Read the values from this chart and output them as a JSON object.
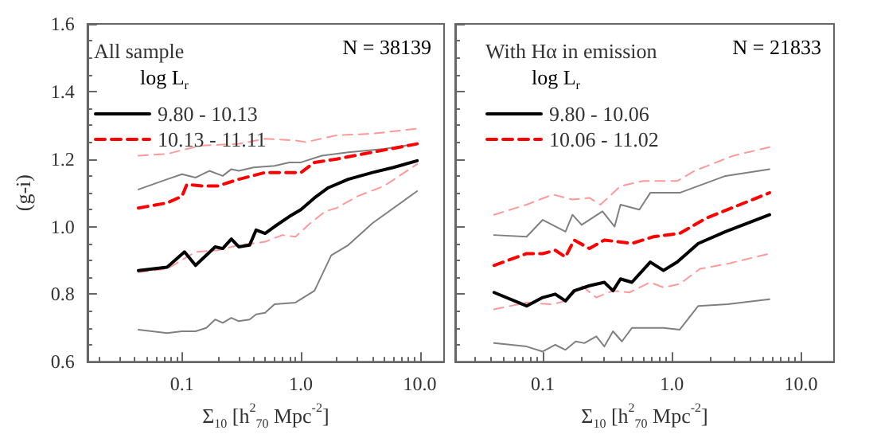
{
  "chart_data": [
    {
      "type": "line",
      "title": "All sample",
      "annotations": [
        "N = 38139"
      ],
      "xlabel": "Σ$_{10}$ [h$^{2}$$_{70}$ Mpc$^{-2}$]",
      "ylabel": "(g-i)",
      "legend_title": "log L$_{r}$",
      "legend": "top left",
      "log": "x",
      "marker": "none",
      "xlim": [
        0.016,
        16
      ],
      "xticks": [
        {
          "value": 0.1,
          "label": "0.1"
        },
        {
          "value": 1,
          "label": "1.0"
        },
        {
          "value": 10,
          "label": "10.0"
        }
      ],
      "ylim": [
        0.6,
        1.6
      ],
      "yticks": [
        {
          "value": 0.6,
          "label": "0.6"
        },
        {
          "value": 0.8,
          "label": "0.8"
        },
        {
          "value": 1.0,
          "label": "1.0"
        },
        {
          "value": 1.2,
          "label": "1.2"
        },
        {
          "value": 1.4,
          "label": "1.4"
        },
        {
          "value": 1.6,
          "label": "1.6"
        }
      ],
      "series": [
        {
          "color": "#808080",
          "line_style": "solid",
          "x": [
            0.043,
            0.075,
            0.1,
            0.13,
            0.17,
            0.22,
            0.26,
            0.3,
            0.4,
            0.6,
            0.8,
            1.0,
            1.5,
            2.5,
            5,
            9.5
          ],
          "values": [
            1.11,
            1.14,
            1.155,
            1.145,
            1.165,
            1.15,
            1.17,
            1.165,
            1.175,
            1.18,
            1.19,
            1.19,
            1.21,
            1.22,
            1.23,
            1.245
          ]
        },
        {
          "color": "#808080",
          "line_style": "solid",
          "x": [
            0.043,
            0.075,
            0.1,
            0.13,
            0.16,
            0.19,
            0.22,
            0.26,
            0.3,
            0.37,
            0.42,
            0.5,
            0.6,
            0.9,
            1.3,
            1.8,
            2.5,
            4,
            9.5
          ],
          "values": [
            0.695,
            0.685,
            0.69,
            0.69,
            0.7,
            0.725,
            0.715,
            0.73,
            0.72,
            0.725,
            0.74,
            0.745,
            0.77,
            0.775,
            0.81,
            0.915,
            0.945,
            1.01,
            1.105
          ]
        },
        {
          "color": "#ff9999",
          "line_style": "dashed",
          "x": [
            0.043,
            0.075,
            0.11,
            0.15,
            0.3,
            0.5,
            0.9,
            1.1,
            2,
            4,
            9.5
          ],
          "values": [
            1.21,
            1.215,
            1.23,
            1.24,
            1.245,
            1.26,
            1.255,
            1.25,
            1.27,
            1.275,
            1.29
          ]
        },
        {
          "color": "#ff9999",
          "line_style": "dashed",
          "x": [
            0.043,
            0.075,
            0.13,
            0.2,
            0.3,
            0.5,
            0.7,
            0.9,
            1.2,
            1.6,
            2,
            3,
            5,
            9.5
          ],
          "values": [
            0.865,
            0.875,
            0.925,
            0.93,
            0.945,
            0.955,
            0.975,
            0.97,
            1.01,
            1.045,
            1.055,
            1.09,
            1.12,
            1.185
          ]
        },
        {
          "name": "9.80 - 10.13",
          "color": "#000000",
          "line_style": "solid",
          "x": [
            0.043,
            0.075,
            0.105,
            0.13,
            0.19,
            0.22,
            0.26,
            0.3,
            0.37,
            0.42,
            0.5,
            0.6,
            0.8,
            1.0,
            1.3,
            1.7,
            2.5,
            4,
            6,
            9.5
          ],
          "values": [
            0.87,
            0.88,
            0.925,
            0.885,
            0.94,
            0.935,
            0.963,
            0.94,
            0.945,
            0.99,
            0.98,
            1.0,
            1.03,
            1.05,
            1.085,
            1.115,
            1.14,
            1.16,
            1.175,
            1.195
          ]
        },
        {
          "name": "10.13 - 11.11",
          "color": "#ff0000",
          "line_style": "dashed",
          "x": [
            0.043,
            0.075,
            0.1,
            0.11,
            0.15,
            0.2,
            0.3,
            0.5,
            0.7,
            1.0,
            1.3,
            2,
            4,
            9.5
          ],
          "values": [
            1.055,
            1.07,
            1.09,
            1.125,
            1.12,
            1.12,
            1.14,
            1.16,
            1.16,
            1.16,
            1.19,
            1.2,
            1.22,
            1.245
          ]
        }
      ]
    },
    {
      "type": "line",
      "title": "With Hα in emission",
      "annotations": [
        "N = 21833"
      ],
      "xlabel": "Σ$_{10}$ [h$^{2}$$_{70}$ Mpc$^{-2}$]",
      "legend_title": "log L$_{r}$",
      "legend": "top left",
      "log": "x",
      "marker": "none",
      "tick_labels": "x",
      "xlim": [
        0.021,
        18
      ],
      "xticks": [
        {
          "value": 0.1,
          "label": "0.1"
        },
        {
          "value": 1,
          "label": "1.0"
        },
        {
          "value": 10,
          "label": "10.0"
        }
      ],
      "ylim": [
        0.6,
        1.6
      ],
      "yticks": [
        0.6,
        0.8,
        1,
        1.2,
        1.4,
        1.6
      ],
      "series": [
        {
          "color": "#808080",
          "line_style": "solid",
          "x": [
            0.042,
            0.075,
            0.1,
            0.15,
            0.17,
            0.2,
            0.29,
            0.36,
            0.4,
            0.56,
            0.68,
            1.15,
            2.6,
            5.7
          ],
          "values": [
            0.975,
            0.97,
            1.02,
            0.985,
            1.035,
            1.005,
            1.045,
            1.0,
            1.065,
            1.05,
            1.1,
            1.1,
            1.15,
            1.17
          ]
        },
        {
          "color": "#808080",
          "line_style": "solid",
          "x": [
            0.042,
            0.075,
            0.1,
            0.125,
            0.15,
            0.18,
            0.21,
            0.26,
            0.3,
            0.35,
            0.41,
            0.49,
            0.58,
            0.86,
            1.15,
            1.6,
            2.7,
            5.7
          ],
          "values": [
            0.655,
            0.645,
            0.63,
            0.65,
            0.635,
            0.66,
            0.655,
            0.675,
            0.645,
            0.69,
            0.66,
            0.7,
            0.7,
            0.7,
            0.695,
            0.765,
            0.77,
            0.785
          ]
        },
        {
          "color": "#ff9999",
          "line_style": "dashed",
          "x": [
            0.042,
            0.075,
            0.12,
            0.17,
            0.23,
            0.28,
            0.4,
            0.6,
            1.1,
            1.5,
            3,
            5.7
          ],
          "values": [
            1.035,
            1.065,
            1.095,
            1.08,
            1.085,
            1.065,
            1.12,
            1.135,
            1.135,
            1.165,
            1.21,
            1.235
          ]
        },
        {
          "color": "#ff9999",
          "line_style": "dashed",
          "x": [
            0.042,
            0.075,
            0.12,
            0.15,
            0.2,
            0.26,
            0.35,
            0.47,
            0.68,
            0.86,
            1.15,
            1.65,
            2.7,
            5.7
          ],
          "values": [
            0.755,
            0.775,
            0.77,
            0.78,
            0.825,
            0.79,
            0.81,
            0.805,
            0.835,
            0.82,
            0.83,
            0.875,
            0.89,
            0.92
          ]
        },
        {
          "name": "9.80 - 10.06",
          "color": "#000000",
          "line_style": "solid",
          "x": [
            0.042,
            0.075,
            0.1,
            0.125,
            0.15,
            0.175,
            0.23,
            0.3,
            0.35,
            0.4,
            0.49,
            0.68,
            0.86,
            1.1,
            1.6,
            2.6,
            5.7
          ],
          "values": [
            0.805,
            0.765,
            0.79,
            0.8,
            0.78,
            0.81,
            0.825,
            0.835,
            0.81,
            0.845,
            0.835,
            0.895,
            0.87,
            0.895,
            0.95,
            0.985,
            1.035
          ]
        },
        {
          "name": "10.06 - 11.02",
          "color": "#ff0000",
          "line_style": "dashed",
          "x": [
            0.042,
            0.075,
            0.1,
            0.125,
            0.15,
            0.175,
            0.23,
            0.3,
            0.49,
            0.72,
            1.15,
            1.85,
            5.7
          ],
          "values": [
            0.885,
            0.92,
            0.92,
            0.93,
            0.91,
            0.96,
            0.935,
            0.96,
            0.95,
            0.97,
            0.98,
            1.025,
            1.1
          ]
        }
      ]
    }
  ]
}
